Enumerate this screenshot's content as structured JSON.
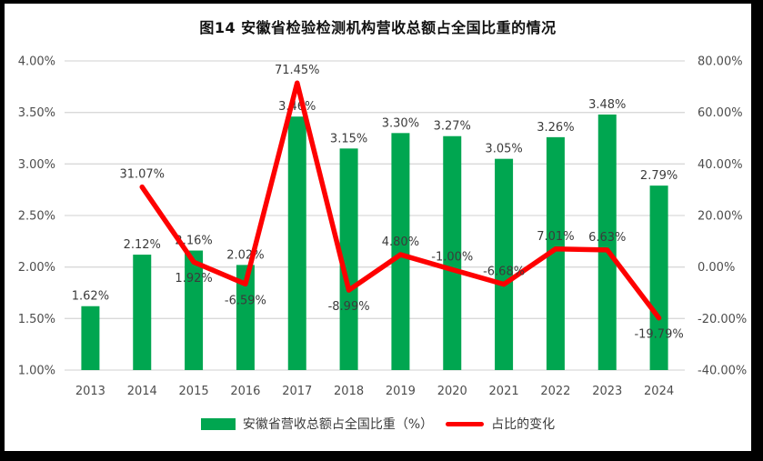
{
  "title": "图14 安徽省检验检测机构营收总额占全国比重的情况",
  "colors": {
    "bar": "#00a650",
    "line": "#fe0000",
    "gridline": "#d9d9d9",
    "tick_text": "#4d4d4d",
    "label_text": "#3b3b3b",
    "frame": "#000000"
  },
  "legend": [
    {
      "label": "安徽省营收总额占全国比重（%）",
      "swatch": "bar",
      "color": "#00a650"
    },
    {
      "label": "占比的变化",
      "swatch": "line",
      "color": "#fe0000"
    }
  ],
  "chart_data": {
    "type": "bar+line combo",
    "title": "图14 安徽省检验检测机构营收总额占全国比重的情况",
    "categories": [
      "2013",
      "2014",
      "2015",
      "2016",
      "2017",
      "2018",
      "2019",
      "2020",
      "2021",
      "2022",
      "2023",
      "2024"
    ],
    "series": [
      {
        "name": "安徽省营收总额占全国比重（%）",
        "type": "bar",
        "axis": "left",
        "color": "#00a650",
        "values": [
          1.62,
          2.12,
          2.16,
          2.02,
          3.46,
          3.15,
          3.3,
          3.27,
          3.05,
          3.26,
          3.48,
          2.79
        ],
        "labels": [
          "1.62%",
          "2.12%",
          "2.16%",
          "2.02%",
          "3.46%",
          "3.15%",
          "3.30%",
          "3.27%",
          "3.05%",
          "3.26%",
          "3.48%",
          "2.79%"
        ]
      },
      {
        "name": "占比的变化",
        "type": "line",
        "axis": "right",
        "color": "#fe0000",
        "values": [
          null,
          31.07,
          1.92,
          -6.59,
          71.45,
          -8.99,
          4.8,
          -1.0,
          -6.68,
          7.01,
          6.63,
          -19.79
        ],
        "labels": [
          null,
          "31.07%",
          "1.92%",
          "-6.59%",
          "71.45%",
          "-8.99%",
          "4.80%",
          "-1.00%",
          "-6.68%",
          "7.01%",
          "6.63%",
          "-19.79%"
        ],
        "label_positions": [
          null,
          "above",
          "below",
          "below",
          "above",
          "below",
          "above",
          "above",
          "above",
          "above",
          "above",
          "below"
        ]
      }
    ],
    "left_axis": {
      "min": 1.0,
      "max": 4.0,
      "ticks": [
        "4.00%",
        "3.50%",
        "3.00%",
        "2.50%",
        "2.00%",
        "1.50%",
        "1.00%"
      ]
    },
    "right_axis": {
      "min": -40,
      "max": 80,
      "ticks": [
        "80.00%",
        "60.00%",
        "40.00%",
        "20.00%",
        "0.00%",
        "-20.00%",
        "-40.00%"
      ]
    },
    "grid": true,
    "legend_position": "bottom"
  }
}
